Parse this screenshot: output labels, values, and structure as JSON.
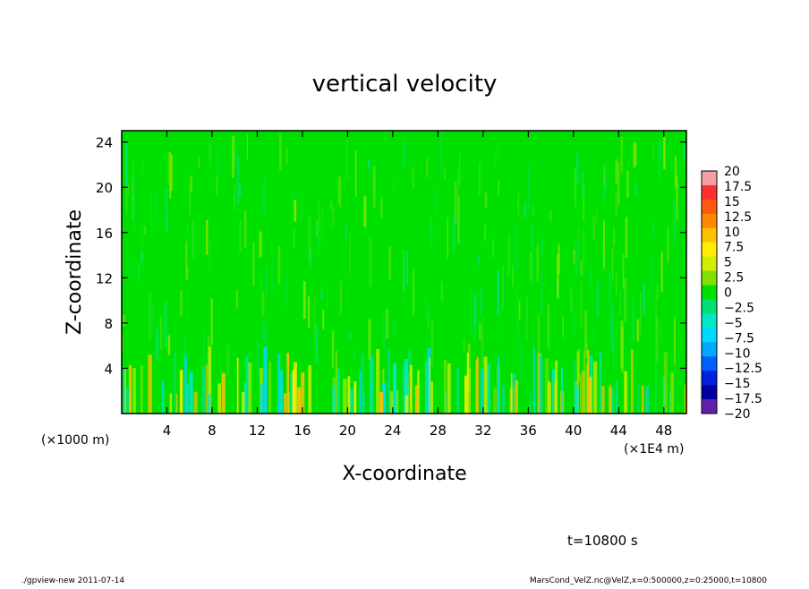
{
  "chart_data": {
    "type": "heatmap",
    "title": "vertical velocity",
    "xlabel": "X-coordinate",
    "ylabel": "Z-coordinate",
    "x_unit_note": "(×1E4 m)",
    "y_unit_note": "(×1000 m)",
    "xlim": [
      0,
      50
    ],
    "ylim": [
      0,
      25
    ],
    "x_ticks": [
      4,
      8,
      12,
      16,
      20,
      24,
      28,
      32,
      36,
      40,
      44,
      48
    ],
    "y_ticks": [
      4,
      8,
      12,
      16,
      20,
      24
    ],
    "colorbar": {
      "levels": [
        "20",
        "17.5",
        "15",
        "12.5",
        "10",
        "7.5",
        "5",
        "2.5",
        "0",
        "−2.5",
        "−5",
        "−7.5",
        "−10",
        "−12.5",
        "−15",
        "−17.5",
        "−20"
      ],
      "colors": [
        "#f4a0a0",
        "#ff3030",
        "#ff5a10",
        "#ff8800",
        "#ffc000",
        "#ffee00",
        "#d0ee00",
        "#80e000",
        "#00e000",
        "#00e070",
        "#00e8c8",
        "#00d8ff",
        "#00a8ff",
        "#0060ff",
        "#0020e0",
        "#0000a0",
        "#6020a8"
      ]
    },
    "time_label": "t=10800 s"
  },
  "footer": {
    "left": "./gpview-new 2011-07-14",
    "right": "MarsCond_VelZ.nc@VelZ,x=0:500000,z=0:25000,t=10800"
  }
}
